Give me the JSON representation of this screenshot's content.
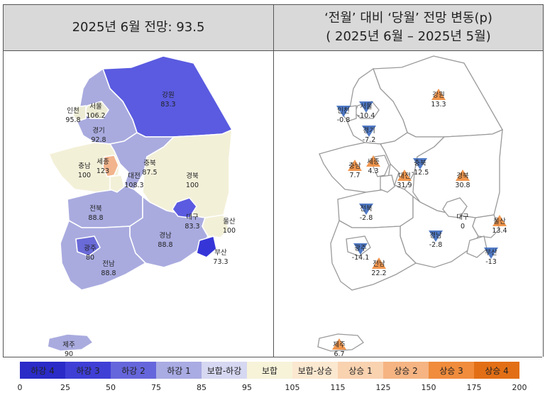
{
  "left_panel": {
    "title": "2025년 6월 전망: 93.5",
    "regions": [
      {
        "key": "gangwon",
        "name": "강원",
        "value": "83.3",
        "color": "#5a5be0"
      },
      {
        "key": "gyeonggi",
        "name": "경기",
        "value": "92.8",
        "color": "#a9abdf"
      },
      {
        "key": "seoul",
        "name": "서울",
        "value": "106.2",
        "color": "#ecebd4"
      },
      {
        "key": "incheon",
        "name": "인천",
        "value": "95.8",
        "color": "#ecebd4"
      },
      {
        "key": "chungbuk",
        "name": "충북",
        "value": "87.5",
        "color": "#a9abdf"
      },
      {
        "key": "chungnam",
        "name": "충남",
        "value": "100",
        "color": "#f3f0d8"
      },
      {
        "key": "sejong",
        "name": "세종",
        "value": "123",
        "color": "#f2b48c"
      },
      {
        "key": "daejeon",
        "name": "대전",
        "value": "108.3",
        "color": "#f3f0d8"
      },
      {
        "key": "gyeongbuk",
        "name": "경북",
        "value": "100",
        "color": "#f3f0d8"
      },
      {
        "key": "daegu",
        "name": "대구",
        "value": "83.3",
        "color": "#5a5be0"
      },
      {
        "key": "ulsan",
        "name": "울산",
        "value": "100",
        "color": "#f3f0d8"
      },
      {
        "key": "jeonbuk",
        "name": "전북",
        "value": "88.8",
        "color": "#a9abdf"
      },
      {
        "key": "gyeongnam",
        "name": "경남",
        "value": "88.8",
        "color": "#a9abdf"
      },
      {
        "key": "gwangju",
        "name": "광주",
        "value": "80",
        "color": "#6a6ad8"
      },
      {
        "key": "jeonnam",
        "name": "전남",
        "value": "88.8",
        "color": "#a9abdf"
      },
      {
        "key": "busan",
        "name": "부산",
        "value": "73.3",
        "color": "#3636d8"
      },
      {
        "key": "jeju",
        "name": "제주",
        "value": "90",
        "color": "#a9abdf"
      }
    ]
  },
  "right_panel": {
    "title_line1": "‘전월’ 대비 ‘당월’ 전망 변동(p)",
    "title_line2": "( 2025년 6월 –  2025년 5월)",
    "regions": [
      {
        "key": "seoul",
        "name": "서울",
        "value": "-10.4",
        "dir": "down"
      },
      {
        "key": "incheon",
        "name": "인천",
        "value": "-0.8",
        "dir": "down"
      },
      {
        "key": "gyeonggi",
        "name": "경기",
        "value": "-7.2",
        "dir": "down"
      },
      {
        "key": "gangwon",
        "name": "강원",
        "value": "13.3",
        "dir": "up"
      },
      {
        "key": "chungnam",
        "name": "충남",
        "value": "7.7",
        "dir": "up"
      },
      {
        "key": "sejong",
        "name": "세종",
        "value": "4.3",
        "dir": "up"
      },
      {
        "key": "chungbuk",
        "name": "충북",
        "value": "-12.5",
        "dir": "down"
      },
      {
        "key": "daejeon",
        "name": "대전",
        "value": "31.9",
        "dir": "up"
      },
      {
        "key": "gyeongbuk",
        "name": "경북",
        "value": "30.8",
        "dir": "up"
      },
      {
        "key": "daegu",
        "name": "대구",
        "value": "0",
        "dir": "none"
      },
      {
        "key": "jeonbuk",
        "name": "전북",
        "value": "-2.8",
        "dir": "down"
      },
      {
        "key": "ulsan",
        "name": "울산",
        "value": "13.4",
        "dir": "up"
      },
      {
        "key": "gyeongnam",
        "name": "경남",
        "value": "-2.8",
        "dir": "down"
      },
      {
        "key": "busan",
        "name": "부산",
        "value": "-13",
        "dir": "down"
      },
      {
        "key": "gwangju",
        "name": "광주",
        "value": "-14.1",
        "dir": "down"
      },
      {
        "key": "jeonnam",
        "name": "전남",
        "value": "22.2",
        "dir": "up"
      },
      {
        "key": "jeju",
        "name": "제주",
        "value": "6.7",
        "dir": "up"
      }
    ]
  },
  "legend": {
    "items": [
      {
        "label": "하강 4",
        "color": "#2b2bc8"
      },
      {
        "label": "하강 3",
        "color": "#3f3fd6"
      },
      {
        "label": "하강 2",
        "color": "#6666dc"
      },
      {
        "label": "하강 1",
        "color": "#a9abe3"
      },
      {
        "label": "보합-하강",
        "color": "#d6d7f1"
      },
      {
        "label": "보합",
        "color": "#f6f3d9"
      },
      {
        "label": "보합-상승",
        "color": "#fbe8d0"
      },
      {
        "label": "상승 1",
        "color": "#f9d2b0"
      },
      {
        "label": "상승 2",
        "color": "#f6b482"
      },
      {
        "label": "상승 3",
        "color": "#f08c3c"
      },
      {
        "label": "상승 4",
        "color": "#e26f16"
      }
    ],
    "scale": [
      "0",
      "25",
      "50",
      "75",
      "85",
      "95",
      "105",
      "115",
      "125",
      "150",
      "175",
      "200"
    ]
  },
  "colors": {
    "up": "#f08c3c",
    "down": "#3d6cc0",
    "border": "#ffffff",
    "outline": "#9a9a9a"
  }
}
